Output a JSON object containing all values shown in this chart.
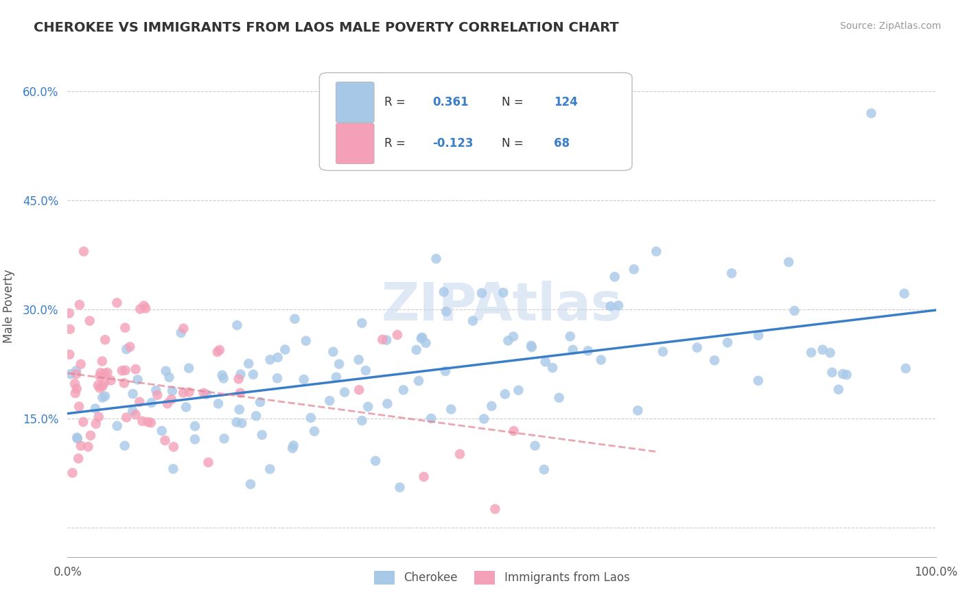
{
  "title": "CHEROKEE VS IMMIGRANTS FROM LAOS MALE POVERTY CORRELATION CHART",
  "source": "Source: ZipAtlas.com",
  "ylabel": "Male Poverty",
  "y_ticks": [
    0.0,
    0.15,
    0.3,
    0.45,
    0.6
  ],
  "xlim": [
    0.0,
    1.0
  ],
  "ylim": [
    -0.04,
    0.65
  ],
  "cherokee_R": 0.361,
  "cherokee_N": 124,
  "laos_R": -0.123,
  "laos_N": 68,
  "cherokee_color": "#a8c8e8",
  "cherokee_line_color": "#3a7ec8",
  "laos_color": "#f4a0b8",
  "laos_line_color": "#e08090",
  "legend_color": "#3a7ec8",
  "watermark": "ZIPAtlas",
  "background_color": "#ffffff",
  "grid_color": "#cccccc"
}
